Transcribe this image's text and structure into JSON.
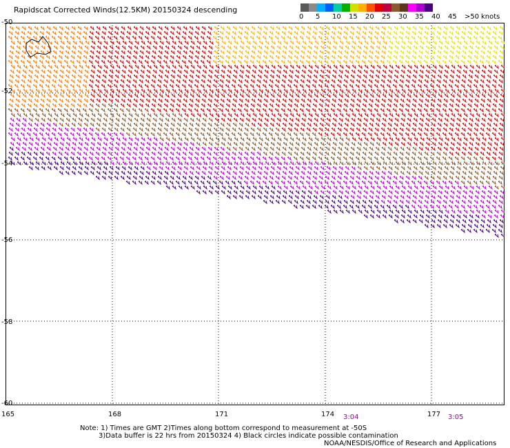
{
  "title": "Rapidscat Corrected Winds(12.5KM) 20150324 descending",
  "legend": {
    "labels": [
      "0",
      "5",
      "10",
      "15",
      "20",
      "25",
      "30",
      "35",
      "40",
      "45",
      ">50"
    ],
    "unit": "knots",
    "colors": [
      "#5a5a5a",
      "#8a8a8a",
      "#00b0ff",
      "#0060ff",
      "#00d0a0",
      "#00b000",
      "#d0e000",
      "#ffb000",
      "#ff5000",
      "#e00000",
      "#c00040",
      "#8b5a2b",
      "#5a3a1a",
      "#ff00ff",
      "#b000d0",
      "#4a0080"
    ]
  },
  "latitudes": [
    "-50",
    "-52",
    "-54",
    "-56",
    "-58",
    "-60"
  ],
  "longitudes": [
    "165",
    "168",
    "171",
    "174",
    "177"
  ],
  "times": [
    "3:04",
    "3:05"
  ],
  "notes": {
    "line1": "Note: 1) Times are GMT 2)Times along bottom correspond to measurement at -50S",
    "line2": "3)Data buffer is 22 hrs from 20150324 4) Black circles indicate possible contamination",
    "credit": "NOAA/NESDIS/Office of Research and Applications"
  }
}
